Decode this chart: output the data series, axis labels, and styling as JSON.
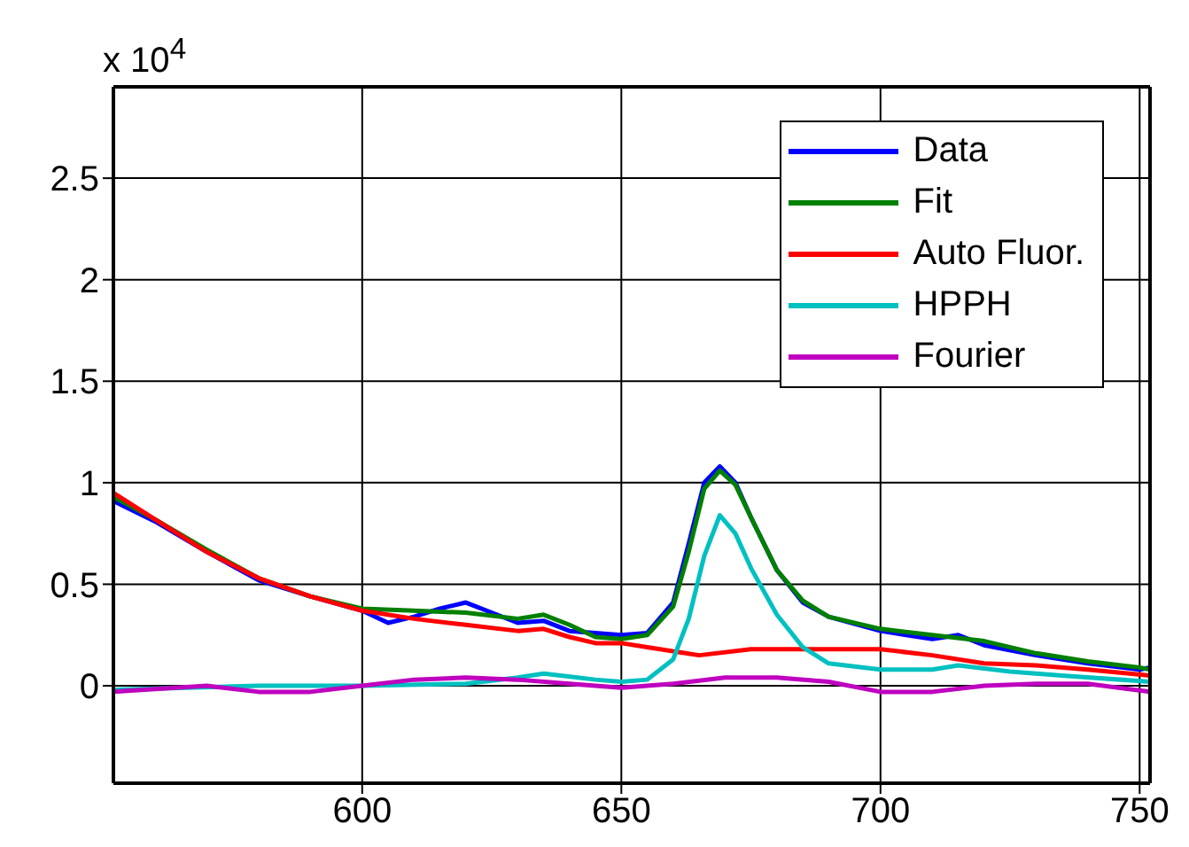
{
  "chart_data": {
    "type": "line",
    "annotations": [
      "x 10$^{4}$"
    ],
    "xlim": [
      552,
      752
    ],
    "xticks": [
      600,
      650,
      700,
      750
    ],
    "ylim": [
      -0.48,
      2.95
    ],
    "yticks": [
      0,
      0.5,
      1,
      1.5,
      2,
      2.5
    ],
    "grid": true,
    "legend": "top right",
    "line_style": "solid",
    "marker": "none",
    "series": [
      {
        "name": "Data",
        "color": "#0000ff",
        "x": [
          552,
          560,
          570,
          580,
          590,
          600,
          605,
          610,
          615,
          620,
          625,
          630,
          635,
          640,
          645,
          650,
          655,
          660,
          663,
          666,
          669,
          672,
          675,
          680,
          685,
          690,
          700,
          710,
          715,
          720,
          730,
          740,
          750,
          752
        ],
        "values": [
          0.91,
          0.81,
          0.66,
          0.52,
          0.44,
          0.37,
          0.31,
          0.34,
          0.38,
          0.41,
          0.36,
          0.31,
          0.32,
          0.27,
          0.26,
          0.25,
          0.26,
          0.41,
          0.7,
          1.0,
          1.08,
          1.0,
          0.83,
          0.57,
          0.41,
          0.34,
          0.27,
          0.23,
          0.25,
          0.2,
          0.15,
          0.11,
          0.08,
          0.09
        ]
      },
      {
        "name": "Fit",
        "color": "#008000",
        "x": [
          552,
          560,
          570,
          580,
          590,
          600,
          610,
          620,
          630,
          635,
          640,
          645,
          650,
          655,
          660,
          663,
          666,
          669,
          672,
          675,
          680,
          685,
          690,
          700,
          710,
          720,
          730,
          740,
          750,
          752
        ],
        "values": [
          0.93,
          0.82,
          0.67,
          0.53,
          0.44,
          0.38,
          0.37,
          0.36,
          0.33,
          0.35,
          0.3,
          0.24,
          0.23,
          0.25,
          0.39,
          0.66,
          0.97,
          1.06,
          0.99,
          0.83,
          0.57,
          0.42,
          0.34,
          0.28,
          0.25,
          0.22,
          0.16,
          0.12,
          0.09,
          0.08
        ]
      },
      {
        "name": "Auto Fluor.",
        "color": "#ff0000",
        "x": [
          552,
          560,
          570,
          580,
          590,
          600,
          610,
          620,
          630,
          635,
          640,
          645,
          650,
          655,
          665,
          675,
          690,
          700,
          710,
          720,
          730,
          740,
          752
        ],
        "values": [
          0.95,
          0.82,
          0.66,
          0.53,
          0.44,
          0.37,
          0.33,
          0.3,
          0.27,
          0.28,
          0.24,
          0.21,
          0.21,
          0.19,
          0.15,
          0.18,
          0.18,
          0.18,
          0.15,
          0.11,
          0.1,
          0.08,
          0.05
        ]
      },
      {
        "name": "HPPH",
        "color": "#00c0c0",
        "x": [
          552,
          580,
          600,
          620,
          630,
          635,
          645,
          650,
          655,
          660,
          663,
          666,
          669,
          672,
          675,
          680,
          685,
          690,
          700,
          710,
          715,
          725,
          735,
          752
        ],
        "values": [
          -0.02,
          0,
          0,
          0.01,
          0.04,
          0.06,
          0.03,
          0.02,
          0.03,
          0.13,
          0.33,
          0.64,
          0.84,
          0.75,
          0.58,
          0.35,
          0.19,
          0.11,
          0.08,
          0.08,
          0.1,
          0.07,
          0.05,
          0.02
        ]
      },
      {
        "name": "Fourier",
        "color": "#bf00bf",
        "x": [
          552,
          570,
          580,
          590,
          600,
          610,
          620,
          630,
          640,
          650,
          660,
          670,
          680,
          690,
          700,
          710,
          720,
          730,
          740,
          752
        ],
        "values": [
          -0.03,
          0,
          -0.03,
          -0.03,
          0,
          0.03,
          0.04,
          0.03,
          0.01,
          -0.01,
          0.01,
          0.04,
          0.04,
          0.02,
          -0.03,
          -0.03,
          0,
          0.01,
          0.01,
          -0.03
        ]
      }
    ]
  }
}
